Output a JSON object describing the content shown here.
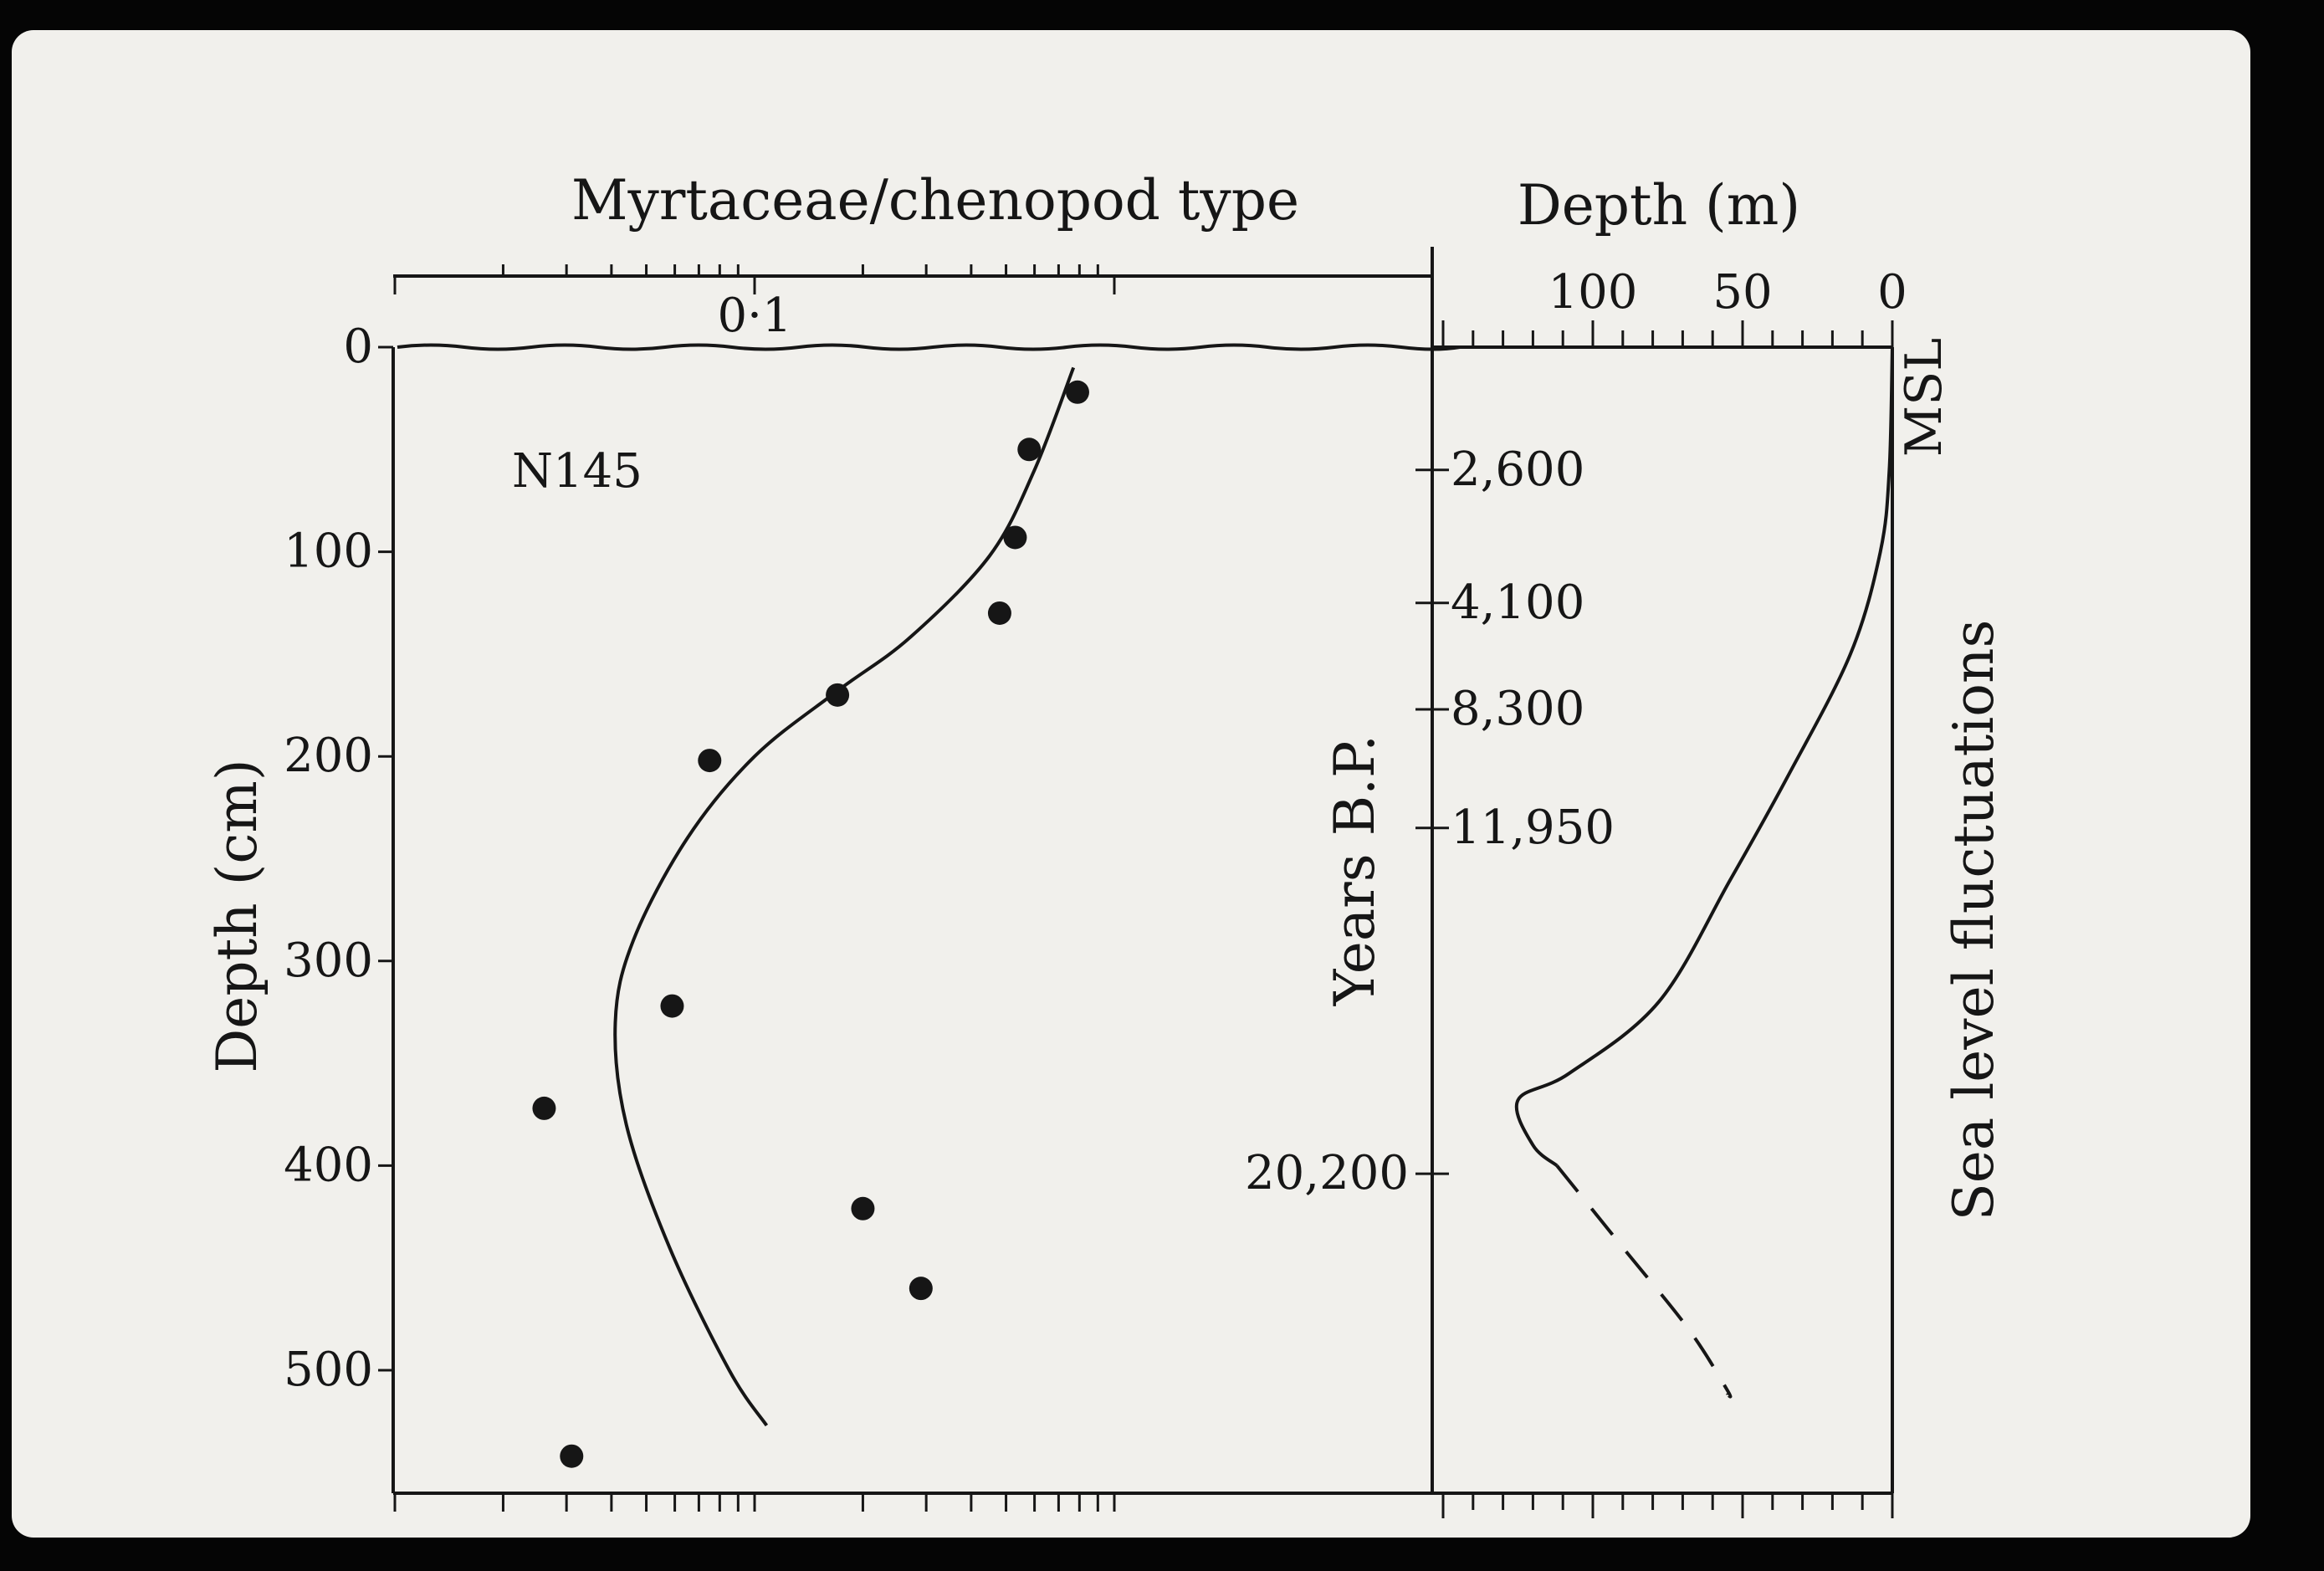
{
  "chart_data": [
    {
      "type": "scatter",
      "title": "Myrtaceae/chenopod type",
      "xlabel": "Myrtaceae/chenopod type",
      "ylabel": "Depth (cm)",
      "x_scale": "log",
      "x_tick_labels": [
        "0·1"
      ],
      "y_ticks": [
        0,
        100,
        200,
        300,
        400,
        500
      ],
      "ylim": [
        0,
        560
      ],
      "annotation": "N145",
      "points": [
        {
          "x": 0.79,
          "y": 22
        },
        {
          "x": 0.58,
          "y": 50
        },
        {
          "x": 0.53,
          "y": 93
        },
        {
          "x": 0.48,
          "y": 130
        },
        {
          "x": 0.17,
          "y": 170
        },
        {
          "x": 0.075,
          "y": 202
        },
        {
          "x": 0.059,
          "y": 322
        },
        {
          "x": 0.026,
          "y": 372
        },
        {
          "x": 0.2,
          "y": 421
        },
        {
          "x": 0.29,
          "y": 460
        },
        {
          "x": 0.031,
          "y": 542
        }
      ],
      "fit_curve": {
        "style": "solid",
        "points": [
          [
            0.77,
            10
          ],
          [
            0.6,
            60
          ],
          [
            0.45,
            102
          ],
          [
            0.27,
            142
          ],
          [
            0.17,
            168
          ],
          [
            0.1,
            200
          ],
          [
            0.065,
            240
          ],
          [
            0.046,
            290
          ],
          [
            0.041,
            330
          ],
          [
            0.044,
            380
          ],
          [
            0.058,
            440
          ],
          [
            0.085,
            500
          ],
          [
            0.108,
            527
          ]
        ]
      }
    },
    {
      "type": "line",
      "title": "Sea level fluctuations",
      "xlabel": "Depth (m)",
      "ylabel": "Years B.P.",
      "x_ticks": [
        100,
        50,
        0
      ],
      "xlim": [
        150,
        0
      ],
      "curve_label": "MSL",
      "year_marks": [
        {
          "label": "2,600",
          "depth_cm": 60
        },
        {
          "label": "4,100",
          "depth_cm": 125
        },
        {
          "label": "8,300",
          "depth_cm": 177
        },
        {
          "label": "11,950",
          "depth_cm": 235
        },
        {
          "label": "20,200",
          "depth_cm": 404
        }
      ],
      "series": [
        {
          "style": "solid",
          "points": [
            {
              "x": 0,
              "y_depth_cm": 0
            },
            {
              "x": 1,
              "y_depth_cm": 60
            },
            {
              "x": 4,
              "y_depth_cm": 100
            },
            {
              "x": 14,
              "y_depth_cm": 150
            },
            {
              "x": 35,
              "y_depth_cm": 210
            },
            {
              "x": 54,
              "y_depth_cm": 260
            },
            {
              "x": 78,
              "y_depth_cm": 320
            },
            {
              "x": 108,
              "y_depth_cm": 355
            },
            {
              "x": 125,
              "y_depth_cm": 368
            },
            {
              "x": 120,
              "y_depth_cm": 390
            },
            {
              "x": 112,
              "y_depth_cm": 400
            }
          ]
        },
        {
          "style": "dashed",
          "points": [
            {
              "x": 112,
              "y_depth_cm": 400
            },
            {
              "x": 90,
              "y_depth_cm": 440
            },
            {
              "x": 68,
              "y_depth_cm": 480
            },
            {
              "x": 55,
              "y_depth_cm": 510
            },
            {
              "x": 55,
              "y_depth_cm": 512
            }
          ]
        }
      ]
    }
  ]
}
